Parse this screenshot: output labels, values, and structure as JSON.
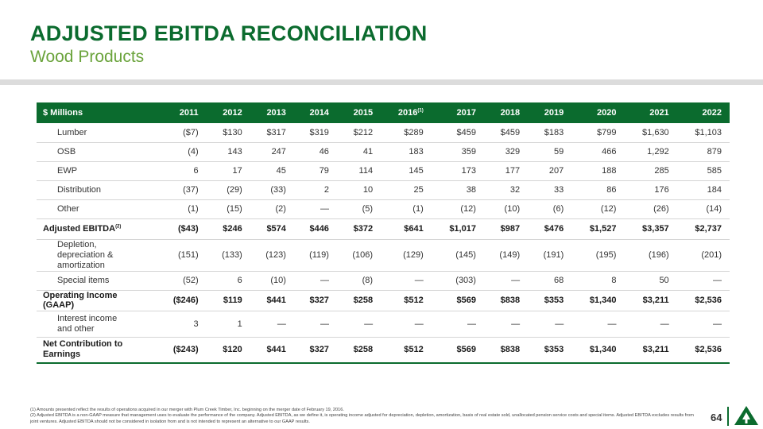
{
  "header": {
    "title": "ADJUSTED EBITDA RECONCILIATION",
    "subtitle": "Wood Products"
  },
  "table": {
    "corner_label": "$ Millions",
    "years": [
      "2011",
      "2012",
      "2013",
      "2014",
      "2015",
      "2016",
      "2017",
      "2018",
      "2019",
      "2020",
      "2021",
      "2022"
    ],
    "year_2016_footnote": "(1)",
    "rows": [
      {
        "label": "Lumber",
        "values": [
          "($7)",
          "$130",
          "$317",
          "$319",
          "$212",
          "$289",
          "$459",
          "$459",
          "$183",
          "$799",
          "$1,630",
          "$1,103"
        ]
      },
      {
        "label": "OSB",
        "values": [
          "(4)",
          "143",
          "247",
          "46",
          "41",
          "183",
          "359",
          "329",
          "59",
          "466",
          "1,292",
          "879"
        ]
      },
      {
        "label": "EWP",
        "values": [
          "6",
          "17",
          "45",
          "79",
          "114",
          "145",
          "173",
          "177",
          "207",
          "188",
          "285",
          "585"
        ]
      },
      {
        "label": "Distribution",
        "values": [
          "(37)",
          "(29)",
          "(33)",
          "2",
          "10",
          "25",
          "38",
          "32",
          "33",
          "86",
          "176",
          "184"
        ]
      },
      {
        "label": "Other",
        "values": [
          "(1)",
          "(15)",
          "(2)",
          "—",
          "(5)",
          "(1)",
          "(12)",
          "(10)",
          "(6)",
          "(12)",
          "(26)",
          "(14)"
        ]
      },
      {
        "label": "Adjusted EBITDA",
        "footnote": "(2)",
        "values": [
          "($43)",
          "$246",
          "$574",
          "$446",
          "$372",
          "$641",
          "$1,017",
          "$987",
          "$476",
          "$1,527",
          "$3,357",
          "$2,737"
        ]
      },
      {
        "label": "Depletion, depreciation & amortization",
        "values": [
          "(151)",
          "(133)",
          "(123)",
          "(119)",
          "(106)",
          "(129)",
          "(145)",
          "(149)",
          "(191)",
          "(195)",
          "(196)",
          "(201)"
        ]
      },
      {
        "label": "Special items",
        "values": [
          "(52)",
          "6",
          "(10)",
          "—",
          "(8)",
          "—",
          "(303)",
          "—",
          "68",
          "8",
          "50",
          "—"
        ]
      },
      {
        "label": "Operating Income (GAAP)",
        "values": [
          "($246)",
          "$119",
          "$441",
          "$327",
          "$258",
          "$512",
          "$569",
          "$838",
          "$353",
          "$1,340",
          "$3,211",
          "$2,536"
        ]
      },
      {
        "label": "Interest income and other",
        "values": [
          "3",
          "1",
          "—",
          "—",
          "—",
          "—",
          "—",
          "—",
          "—",
          "—",
          "—",
          "—"
        ]
      },
      {
        "label": "Net Contribution to Earnings",
        "values": [
          "($243)",
          "$120",
          "$441",
          "$327",
          "$258",
          "$512",
          "$569",
          "$838",
          "$353",
          "$1,340",
          "$3,211",
          "$2,536"
        ]
      }
    ]
  },
  "footnotes": [
    "(1) Amounts presented reflect the results of operations acquired in our merger with Plum Creek Timber, Inc. beginning on the merger date of February 19, 2016.",
    "(2) Adjusted EBITDA is a non-GAAP measure that management uses to evaluate the performance of the company. Adjusted EBITDA, as we define it, is operating income adjusted for depreciation, depletion, amortization, basis of real estate sold, unallocated pension service costs and special items. Adjusted EBITDA excludes results from joint ventures. Adjusted EBITDA should not be considered in isolation from and is not intended to represent an alternative to our GAAP results."
  ],
  "page_number": "64",
  "logo": {
    "icon": "company-triangle-logo",
    "color": "#0b6b2e"
  }
}
